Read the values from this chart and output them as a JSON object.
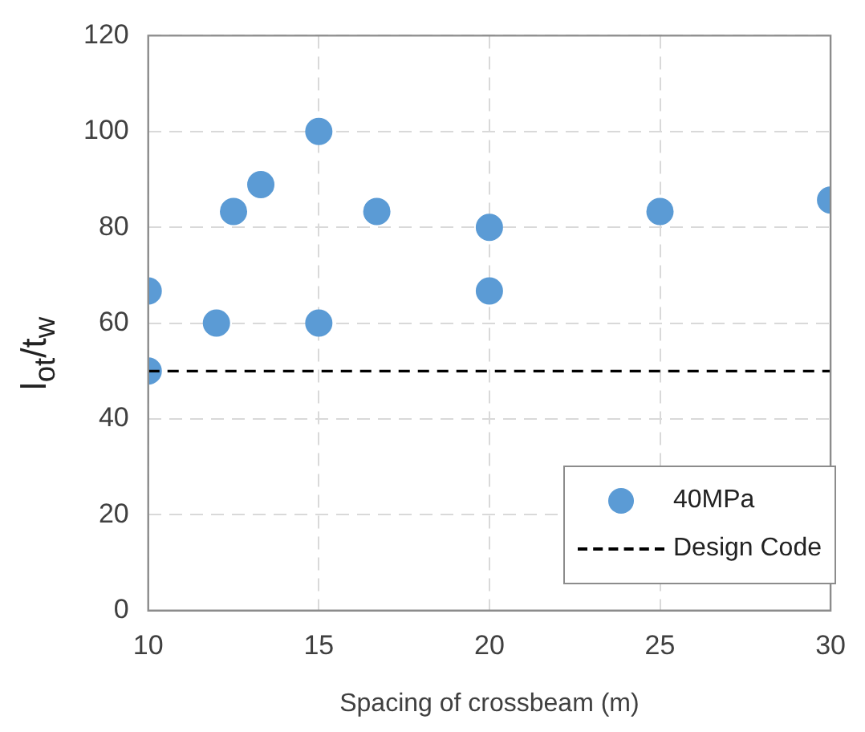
{
  "chart_data": {
    "type": "scatter",
    "xlabel": "Spacing of crossbeam (m)",
    "ylabel": "l$_{ot}$/t$_{w}$",
    "series": [
      {
        "name": "40MPa",
        "color": "#5b9bd5",
        "x": [
          10,
          10,
          12,
          12.5,
          13.3,
          15,
          15,
          16.7,
          20,
          20,
          25,
          30
        ],
        "values": [
          66.7,
          50,
          60,
          83.3,
          88.9,
          100,
          60,
          83.3,
          80,
          66.7,
          83.3,
          85.7
        ]
      }
    ],
    "ref_lines": [
      {
        "axis": "y",
        "value": 50,
        "label": "Design Code",
        "color": "#000000",
        "line_style": "dashed"
      }
    ],
    "xlim": [
      10,
      30
    ],
    "xticks": [
      10,
      15,
      20,
      25,
      30
    ],
    "ylim": [
      0,
      120
    ],
    "yticks": [
      0,
      20,
      40,
      60,
      80,
      100,
      120
    ],
    "grid": true,
    "legend": "bottom right",
    "marker": "circle"
  }
}
